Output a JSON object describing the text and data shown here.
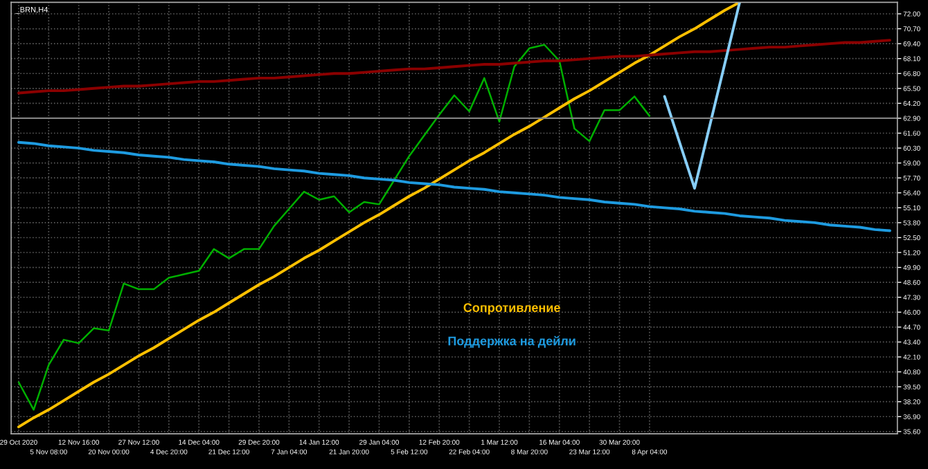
{
  "chart_data": {
    "type": "line",
    "title": "_BRN,H4",
    "categories": [
      "29 Oct 2020",
      null,
      "5 Nov 08:00",
      null,
      "12 Nov 16:00",
      null,
      "20 Nov 00:00",
      null,
      "27 Nov 12:00",
      null,
      "4 Dec 20:00",
      null,
      "14 Dec 04:00",
      null,
      "21 Dec 12:00",
      null,
      "29 Dec 20:00",
      null,
      "7 Jan 04:00",
      null,
      "14 Jan 12:00",
      null,
      "21 Jan 20:00",
      null,
      "29 Jan 04:00",
      null,
      "5 Feb 12:00",
      null,
      "12 Feb 20:00",
      null,
      "22 Feb 04:00",
      null,
      "1 Mar 12:00",
      null,
      "8 Mar 20:00",
      null,
      "16 Mar 04:00",
      null,
      "23 Mar 12:00",
      null,
      "30 Mar 20:00",
      null,
      "8 Apr 04:00",
      null,
      null,
      null,
      null,
      null,
      null,
      null,
      null,
      null,
      null,
      null,
      null,
      null,
      null,
      null,
      null
    ],
    "ylim": [
      35.4,
      73.0
    ],
    "yticks": [
      {
        "value": 35.6,
        "label": "35.60"
      },
      {
        "value": 36.9,
        "label": "36.90"
      },
      {
        "value": 38.2,
        "label": "38.20"
      },
      {
        "value": 39.5,
        "label": "39.50"
      },
      {
        "value": 40.8,
        "label": "40.80"
      },
      {
        "value": 42.1,
        "label": "42.10"
      },
      {
        "value": 43.4,
        "label": "43.40"
      },
      {
        "value": 44.7,
        "label": "44.70"
      },
      {
        "value": 46.0,
        "label": "46.00"
      },
      {
        "value": 47.3,
        "label": "47.30"
      },
      {
        "value": 48.6,
        "label": "48.60"
      },
      {
        "value": 49.9,
        "label": "49.90"
      },
      {
        "value": 51.2,
        "label": "51.20"
      },
      {
        "value": 52.5,
        "label": "52.50"
      },
      {
        "value": 53.8,
        "label": "53.80"
      },
      {
        "value": 55.1,
        "label": "55.10"
      },
      {
        "value": 56.4,
        "label": "56.40"
      },
      {
        "value": 57.7,
        "label": "57.70"
      },
      {
        "value": 59.0,
        "label": "59.00"
      },
      {
        "value": 60.3,
        "label": "60.30"
      },
      {
        "value": 61.6,
        "label": "61.60"
      },
      {
        "value": 62.9,
        "label": "62.90"
      },
      {
        "value": 64.2,
        "label": "64.20"
      },
      {
        "value": 65.5,
        "label": "65.50"
      },
      {
        "value": 66.8,
        "label": "66.80"
      },
      {
        "value": 68.1,
        "label": "68.10"
      },
      {
        "value": 69.4,
        "label": "69.40"
      },
      {
        "value": 70.7,
        "label": "70.70"
      },
      {
        "value": 72.0,
        "label": "72.00"
      }
    ],
    "grid": true,
    "line_style": "solid",
    "series": [
      {
        "color": "#00b000",
        "values": [
          39.9,
          37.5,
          41.4,
          43.6,
          43.3,
          44.6,
          44.4,
          48.5,
          48.0,
          48.0,
          49.0,
          49.3,
          49.6,
          51.5,
          50.7,
          51.5,
          51.5,
          53.5,
          55.0,
          56.5,
          55.8,
          56.1,
          54.7,
          55.6,
          55.4,
          57.5,
          59.6,
          61.4,
          63.2,
          64.9,
          63.5,
          66.4,
          62.6,
          67.4,
          69.0,
          69.3,
          67.9,
          62.0,
          60.9,
          63.6,
          63.6,
          64.8,
          63.1,
          null,
          null,
          null,
          null,
          null,
          null,
          null,
          null,
          null,
          null,
          null,
          null,
          null,
          null,
          null,
          null
        ]
      },
      {
        "color": "#ffc000",
        "values": [
          36.0,
          36.8,
          37.5,
          38.3,
          39.1,
          39.9,
          40.6,
          41.4,
          42.2,
          42.9,
          43.7,
          44.5,
          45.3,
          46.0,
          46.8,
          47.6,
          48.4,
          49.1,
          49.9,
          50.7,
          51.4,
          52.2,
          53.0,
          53.8,
          54.5,
          55.3,
          56.1,
          56.8,
          57.6,
          58.4,
          59.2,
          59.9,
          60.7,
          61.5,
          62.2,
          63.0,
          63.8,
          64.6,
          65.3,
          66.1,
          66.9,
          67.7,
          68.4,
          69.2,
          70.0,
          70.7,
          71.5,
          72.3,
          73.0,
          null,
          null,
          null,
          null,
          null,
          null,
          null,
          null,
          null,
          null
        ]
      },
      {
        "color": "#1e9be0",
        "values": [
          60.8,
          60.7,
          60.5,
          60.4,
          60.3,
          60.1,
          60.0,
          59.9,
          59.7,
          59.6,
          59.5,
          59.3,
          59.2,
          59.1,
          58.9,
          58.8,
          58.7,
          58.5,
          58.4,
          58.3,
          58.1,
          58.0,
          57.9,
          57.7,
          57.6,
          57.5,
          57.3,
          57.2,
          57.1,
          56.9,
          56.8,
          56.7,
          56.5,
          56.4,
          56.3,
          56.2,
          56.0,
          55.9,
          55.8,
          55.6,
          55.5,
          55.4,
          55.2,
          55.1,
          55.0,
          54.8,
          54.7,
          54.6,
          54.4,
          54.3,
          54.2,
          54.0,
          53.9,
          53.8,
          53.6,
          53.5,
          53.4,
          53.2,
          53.1
        ]
      },
      {
        "color": "#8b0000",
        "values": [
          65.1,
          65.2,
          65.3,
          65.3,
          65.4,
          65.5,
          65.6,
          65.7,
          65.7,
          65.8,
          65.9,
          66.0,
          66.1,
          66.1,
          66.2,
          66.3,
          66.4,
          66.4,
          66.5,
          66.6,
          66.7,
          66.8,
          66.8,
          66.9,
          67.0,
          67.1,
          67.2,
          67.2,
          67.3,
          67.4,
          67.5,
          67.6,
          67.6,
          67.7,
          67.8,
          67.9,
          67.9,
          68.0,
          68.1,
          68.2,
          68.3,
          68.3,
          68.4,
          68.5,
          68.6,
          68.7,
          68.7,
          68.8,
          68.9,
          69.0,
          69.1,
          69.1,
          69.2,
          69.3,
          69.4,
          69.5,
          69.5,
          69.6,
          69.7
        ]
      },
      {
        "color": "#87cefa",
        "values": [
          null,
          null,
          null,
          null,
          null,
          null,
          null,
          null,
          null,
          null,
          null,
          null,
          null,
          null,
          null,
          null,
          null,
          null,
          null,
          null,
          null,
          null,
          null,
          null,
          null,
          null,
          null,
          null,
          null,
          null,
          null,
          null,
          null,
          null,
          null,
          null,
          null,
          null,
          null,
          null,
          null,
          null,
          null,
          64.8,
          60.8,
          56.8,
          62.2,
          67.6,
          73.0,
          null,
          null,
          null,
          null,
          null,
          null,
          null,
          null,
          null,
          null
        ]
      }
    ],
    "ref_lines": [
      {
        "axis": "y",
        "value": 62.9,
        "color": "#808080"
      }
    ],
    "annotations": [
      "Сопротивление",
      "Поддержка на дейли"
    ]
  }
}
